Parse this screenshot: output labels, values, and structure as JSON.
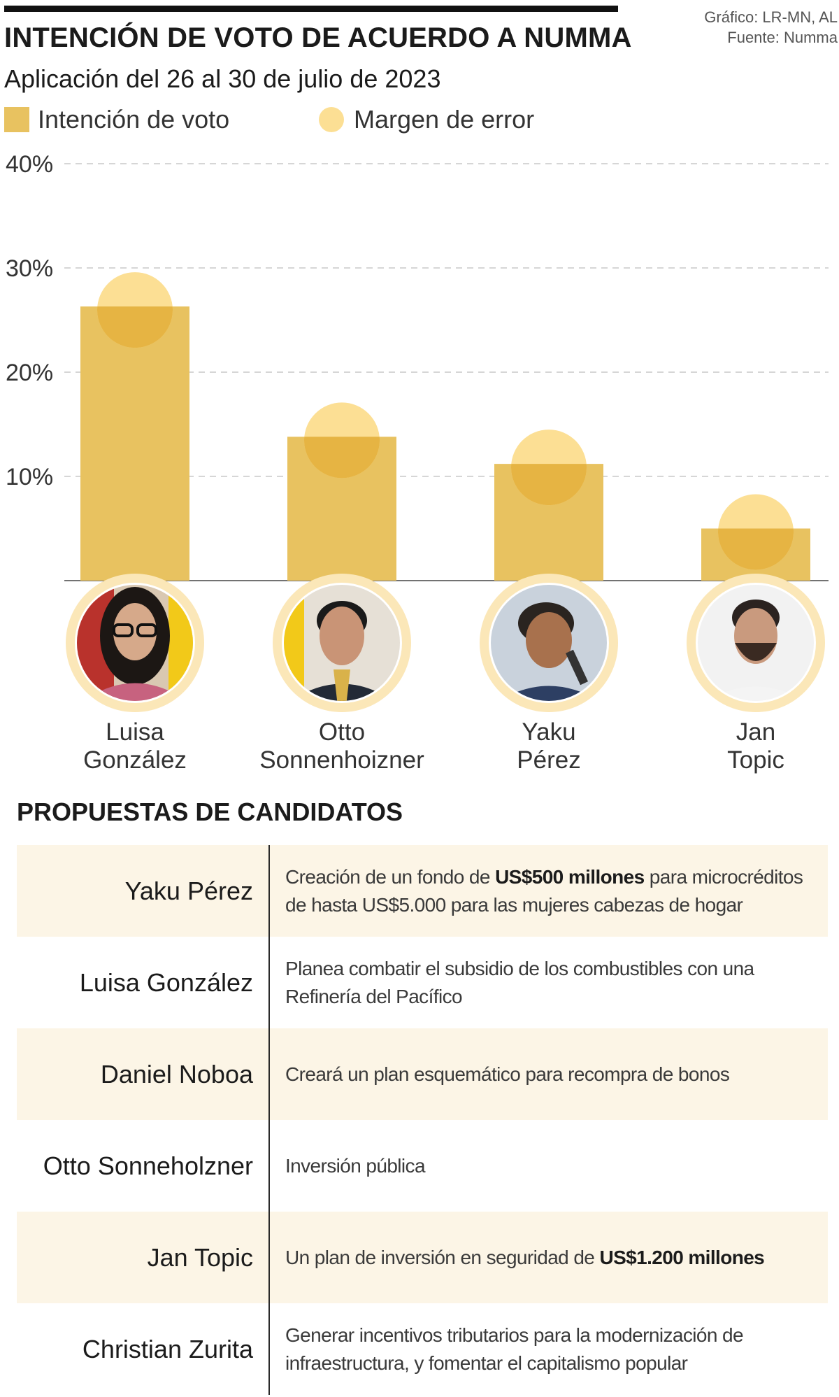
{
  "header": {
    "title": "INTENCIÓN DE VOTO DE ACUERDO A NUMMA",
    "subtitle": "Aplicación del 26 al 30 de julio de 2023",
    "credit_line1": "Gráfico: LR-MN, AL",
    "credit_line2": "Fuente: Numma"
  },
  "legend": {
    "vote_label": "Intención de voto",
    "margin_label": "Margen de error"
  },
  "colors": {
    "bar": "#e8c260",
    "margin_circle": "#fcdf94",
    "overlap": "#e6b443",
    "photo_ring": "#fbe7b8",
    "row_shade": "#fcf5e6"
  },
  "chart_data": {
    "type": "bar",
    "title": "INTENCIÓN DE VOTO DE ACUERDO A NUMMA",
    "subtitle": "Aplicación del 26 al 30 de julio de 2023",
    "categories": [
      "Luisa González",
      "Otto Sonnenhoizner",
      "Yaku Pérez",
      "Jan Topic"
    ],
    "series": [
      {
        "name": "Intención de voto",
        "values": [
          26.3,
          13.8,
          11.2,
          5.0
        ]
      }
    ],
    "margin_of_error_indicator": [
      26.3,
      13.8,
      11.2,
      5.0
    ],
    "ylim": [
      0,
      40
    ],
    "yticks": [
      {
        "value": 10,
        "label": "10%"
      },
      {
        "value": 20,
        "label": "20%"
      },
      {
        "value": 30,
        "label": "30%"
      },
      {
        "value": 40,
        "label": "40%"
      }
    ],
    "grid": "dashed",
    "legend": "top-left"
  },
  "candidates": [
    {
      "first": "Luisa",
      "last": "González",
      "photo_icon": "portrait-woman-glasses-icon"
    },
    {
      "first": "Otto",
      "last": "Sonnenhoizner",
      "photo_icon": "portrait-man-suit-icon"
    },
    {
      "first": "Yaku",
      "last": "Pérez",
      "photo_icon": "portrait-man-speaking-icon"
    },
    {
      "first": "Jan",
      "last": "Topic",
      "photo_icon": "portrait-man-beard-icon"
    }
  ],
  "proposals": {
    "section_title": "PROPUESTAS DE CANDIDATOS",
    "rows": [
      {
        "name": "Yaku Pérez",
        "text_before": "Creación de un fondo de ",
        "bold": "US$500 millones",
        "text_after": " para microcréditos de hasta US$5.000 para las mujeres cabezas de hogar",
        "shaded": true
      },
      {
        "name": "Luisa González",
        "text_before": "Planea combatir el subsidio de los combustibles con una Refinería del Pacífico",
        "bold": "",
        "text_after": "",
        "shaded": false
      },
      {
        "name": "Daniel Noboa",
        "text_before": "Creará un plan esquemático para recompra de bonos",
        "bold": "",
        "text_after": "",
        "shaded": true
      },
      {
        "name": "Otto Sonneholzner",
        "text_before": "Inversión pública",
        "bold": "",
        "text_after": "",
        "shaded": false
      },
      {
        "name": "Jan Topic",
        "text_before": "Un plan de inversión en seguridad de ",
        "bold": "US$1.200 millones",
        "text_after": "",
        "shaded": true
      },
      {
        "name": "Christian Zurita",
        "text_before": "Generar incentivos tributarios para la modernización de infraestructura, y fomentar el capitalismo popular",
        "bold": "",
        "text_after": "",
        "shaded": false
      }
    ]
  }
}
